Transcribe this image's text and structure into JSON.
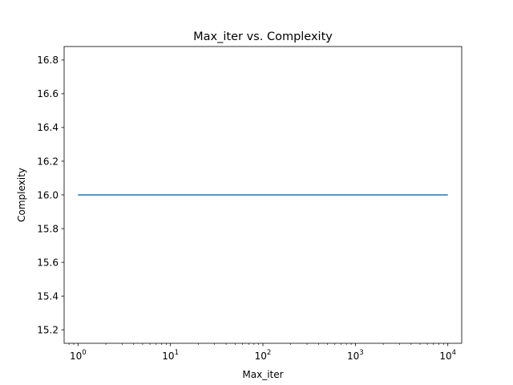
{
  "chart_data": {
    "type": "line",
    "title": "Max_iter vs. Complexity",
    "xlabel": "Max_iter",
    "ylabel": "Complexity",
    "xscale": "log",
    "xlim": [
      0.708,
      14125
    ],
    "ylim": [
      15.12,
      16.88
    ],
    "x_ticks": [
      {
        "value": 1,
        "base": "10",
        "exp": "0"
      },
      {
        "value": 10,
        "base": "10",
        "exp": "1"
      },
      {
        "value": 100,
        "base": "10",
        "exp": "2"
      },
      {
        "value": 1000,
        "base": "10",
        "exp": "3"
      },
      {
        "value": 10000,
        "base": "10",
        "exp": "4"
      }
    ],
    "y_ticks": [
      {
        "value": 15.2,
        "label": "15.2"
      },
      {
        "value": 15.4,
        "label": "15.4"
      },
      {
        "value": 15.6,
        "label": "15.6"
      },
      {
        "value": 15.8,
        "label": "15.8"
      },
      {
        "value": 16.0,
        "label": "16.0"
      },
      {
        "value": 16.2,
        "label": "16.2"
      },
      {
        "value": 16.4,
        "label": "16.4"
      },
      {
        "value": 16.6,
        "label": "16.6"
      },
      {
        "value": 16.8,
        "label": "16.8"
      }
    ],
    "grid": false,
    "series": [
      {
        "color": "#1f77b4",
        "x": [
          1,
          10,
          100,
          1000,
          10000
        ],
        "y": [
          16,
          16,
          16,
          16,
          16
        ]
      }
    ]
  }
}
